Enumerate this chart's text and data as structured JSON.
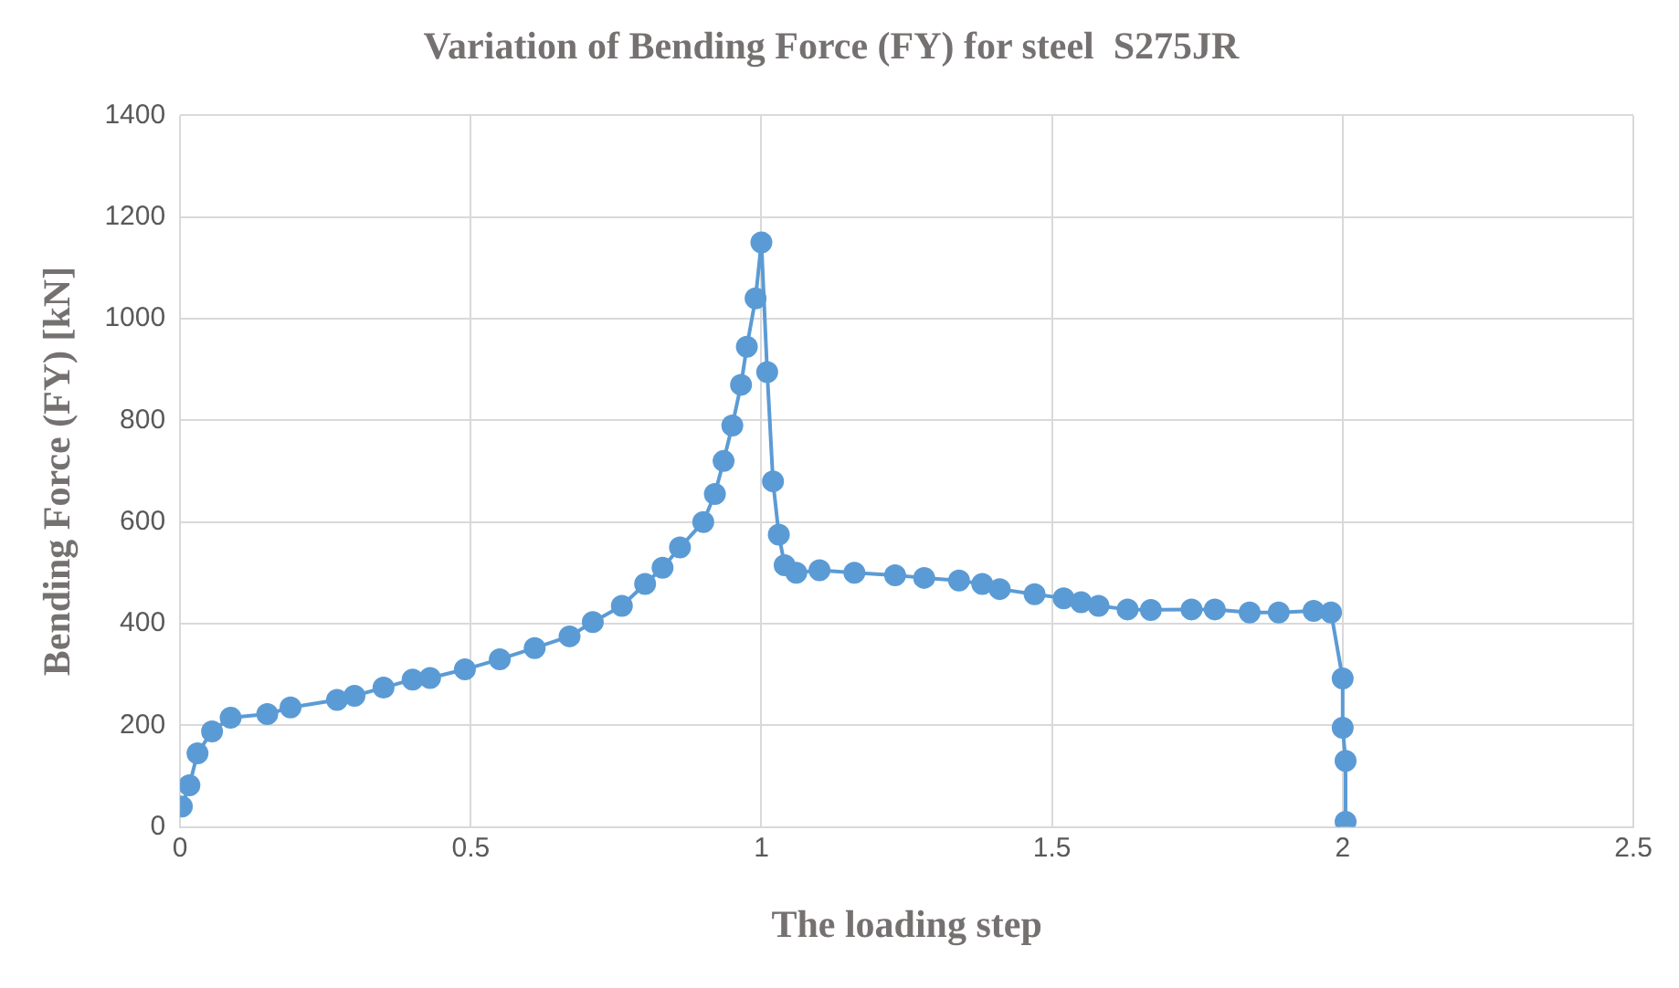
{
  "chart_data": {
    "type": "line",
    "title": "Variation of Bending Force (FY) for steel  S275JR",
    "xlabel": "The loading step",
    "ylabel": "Bending Force (FY) [kN]",
    "xlim": [
      0,
      2.5
    ],
    "xticks": [
      0,
      0.5,
      1,
      1.5,
      2,
      2.5
    ],
    "ylim": [
      0,
      1400
    ],
    "yticks": [
      0,
      200,
      400,
      600,
      800,
      1000,
      1200,
      1400
    ],
    "grid": true,
    "marker": "circle",
    "line_style": "solid",
    "series": [
      {
        "color": "#5b9bd5",
        "x": [
          0.003,
          0.016,
          0.03,
          0.055,
          0.087,
          0.15,
          0.19,
          0.27,
          0.3,
          0.35,
          0.4,
          0.43,
          0.49,
          0.55,
          0.61,
          0.67,
          0.71,
          0.76,
          0.8,
          0.83,
          0.86,
          0.9,
          0.92,
          0.935,
          0.95,
          0.965,
          0.975,
          0.99,
          1.0,
          1.01,
          1.02,
          1.03,
          1.04,
          1.06,
          1.1,
          1.16,
          1.23,
          1.28,
          1.34,
          1.38,
          1.41,
          1.47,
          1.52,
          1.55,
          1.58,
          1.63,
          1.67,
          1.74,
          1.78,
          1.84,
          1.89,
          1.95,
          1.98,
          2.0,
          2.0,
          2.005,
          2.005
        ],
        "values": [
          40,
          82,
          145,
          188,
          215,
          222,
          235,
          250,
          258,
          274,
          290,
          293,
          310,
          330,
          352,
          375,
          403,
          435,
          478,
          510,
          550,
          600,
          655,
          720,
          790,
          870,
          945,
          1040,
          1150,
          895,
          680,
          575,
          515,
          500,
          505,
          500,
          495,
          490,
          485,
          478,
          468,
          458,
          450,
          442,
          435,
          428,
          427,
          428,
          428,
          422,
          422,
          425,
          422,
          292,
          195,
          130,
          10
        ]
      }
    ]
  }
}
